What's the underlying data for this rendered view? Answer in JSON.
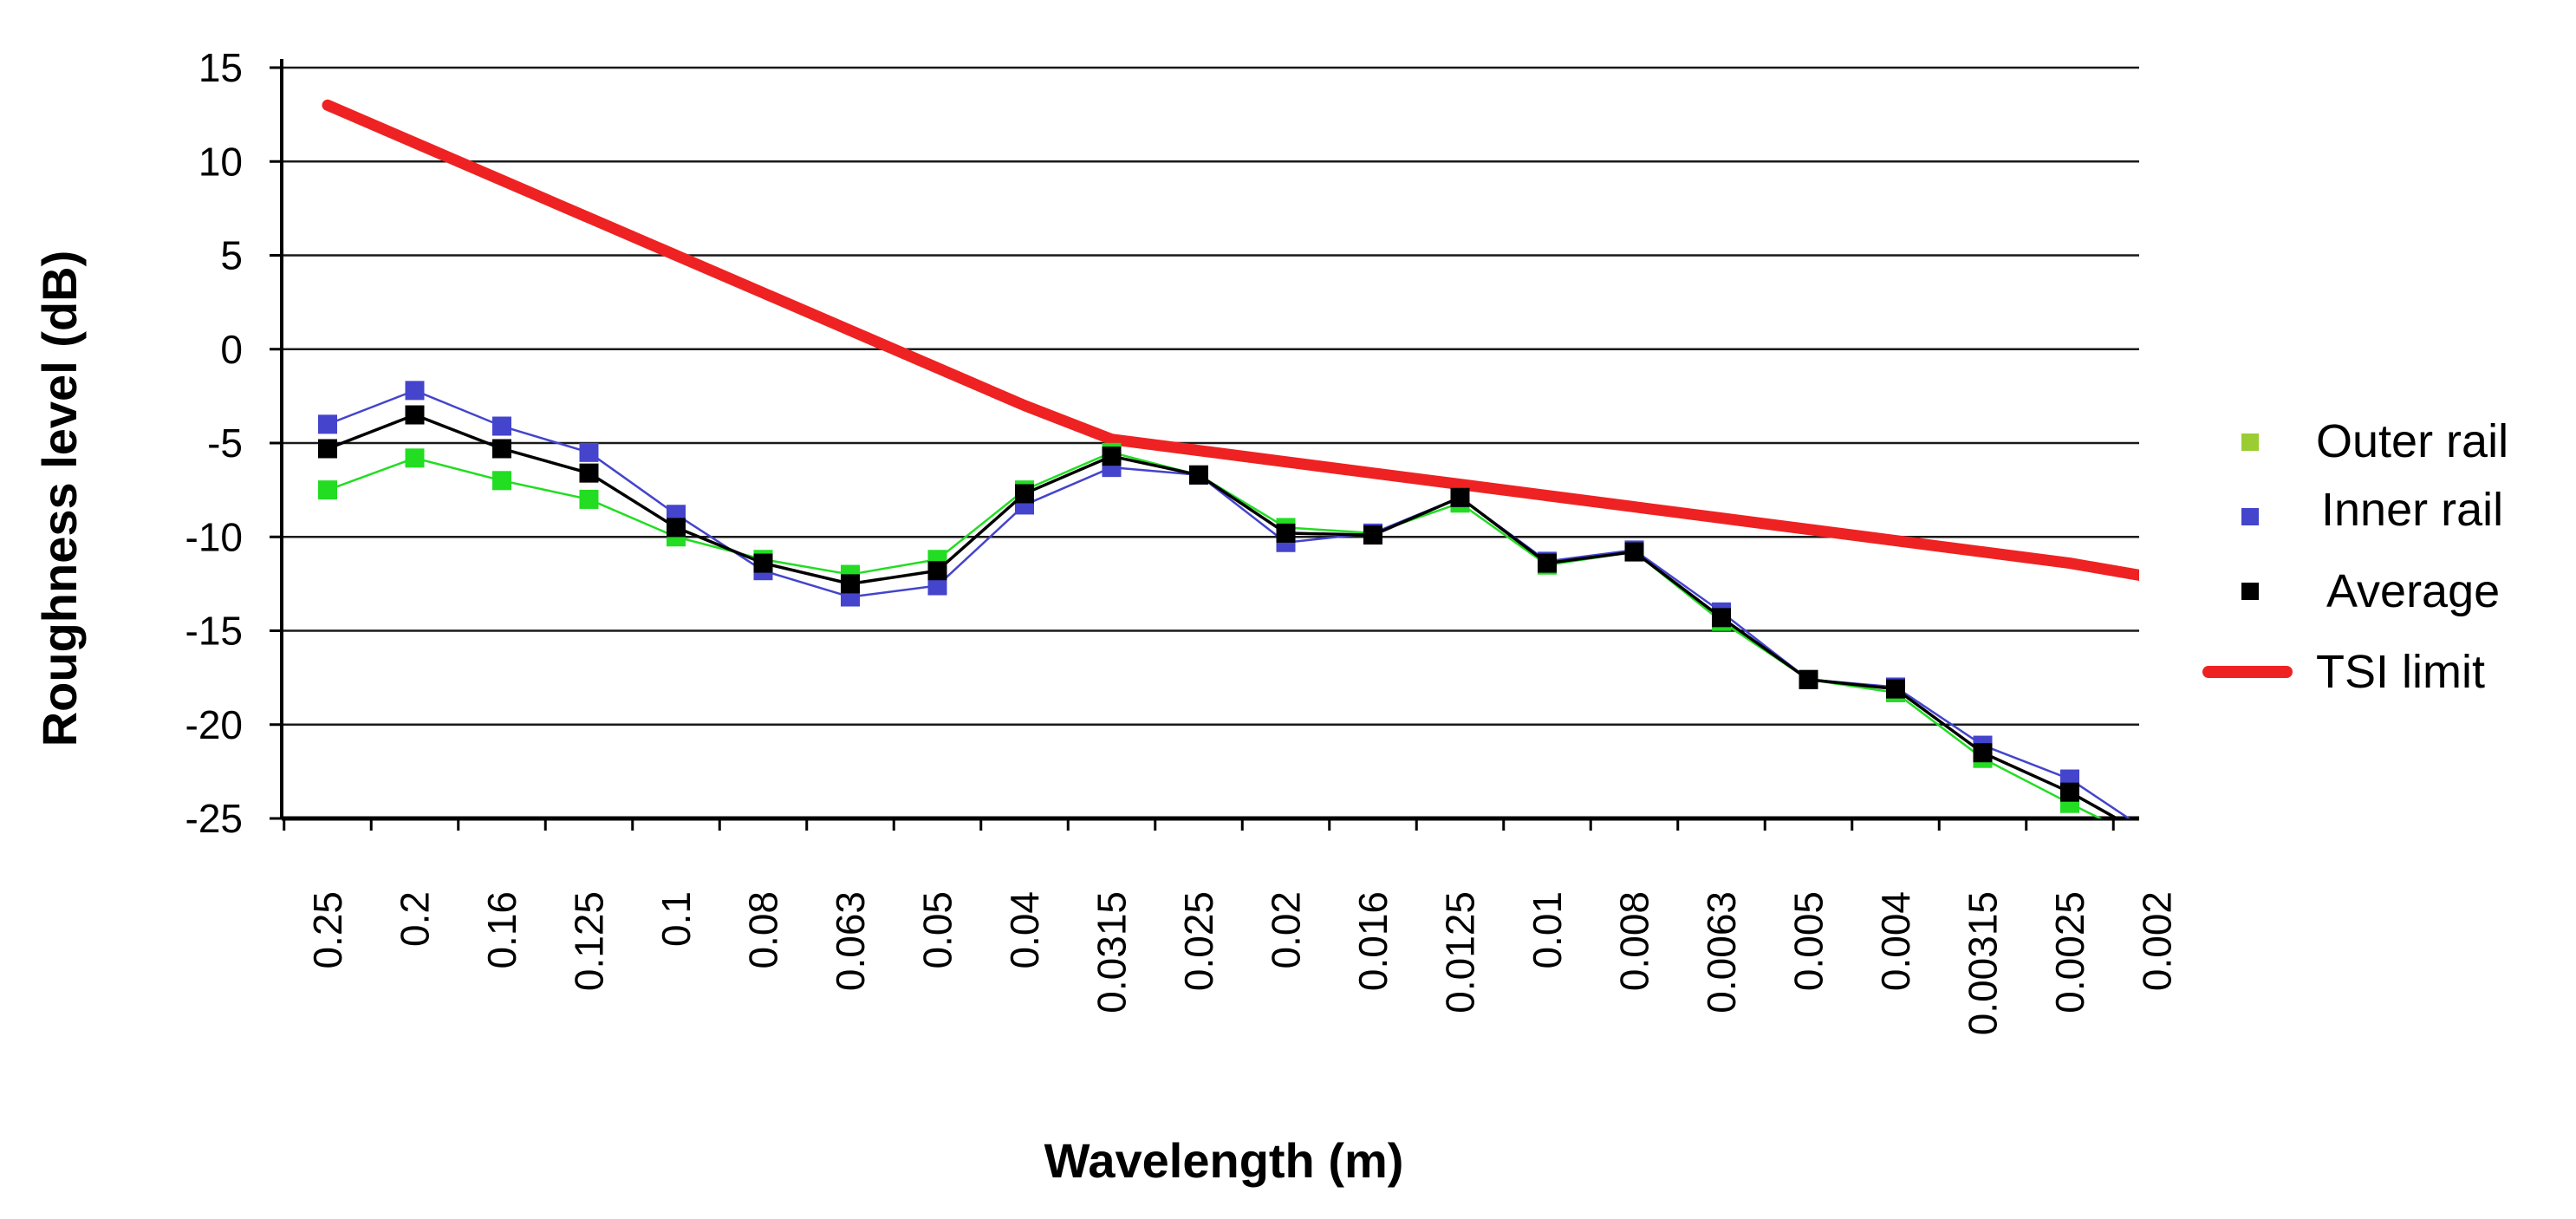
{
  "chart_data": {
    "type": "line",
    "title": "",
    "xlabel": "Wavelength (m)",
    "ylabel": "Roughness level  (dB)",
    "ylim": [
      -25,
      15
    ],
    "yticks": [
      15,
      10,
      5,
      0,
      -5,
      -10,
      -15,
      -20,
      -25
    ],
    "ytick_labels": [
      "15",
      "10",
      "5",
      "0",
      "-5",
      "-10",
      "-15",
      "-20",
      "-25"
    ],
    "categories": [
      "0.25",
      "0.2",
      "0.16",
      "0.125",
      "0.1",
      "0.08",
      "0.063",
      "0.05",
      "0.04",
      "0.0315",
      "0.025",
      "0.02",
      "0.016",
      "0.0125",
      "0.01",
      "0.008",
      "0.0063",
      "0.005",
      "0.004",
      "0.00315",
      "0.0025",
      "0.002"
    ],
    "grid": "horizontal",
    "legend_position": "right",
    "series": [
      {
        "name": "Outer rail",
        "color": "#22dd22",
        "legend_marker_color": "#9acd32",
        "marker": "square",
        "values": [
          -7.5,
          -5.8,
          -7.0,
          -8.0,
          -10.0,
          -11.2,
          -12.0,
          -11.2,
          -7.5,
          -5.5,
          -6.7,
          -9.5,
          -9.8,
          -8.2,
          -11.5,
          -10.8,
          -14.5,
          -17.6,
          -18.3,
          -21.8,
          -24.2,
          -26.5
        ]
      },
      {
        "name": "Inner rail",
        "color": "#4444cc",
        "legend_marker_color": "#4444cc",
        "marker": "square",
        "values": [
          -4.0,
          -2.2,
          -4.1,
          -5.5,
          -8.8,
          -11.8,
          -13.2,
          -12.6,
          -8.3,
          -6.3,
          -6.7,
          -10.3,
          -9.8,
          -7.9,
          -11.3,
          -10.7,
          -14.0,
          -17.6,
          -18.0,
          -21.1,
          -22.9,
          -26.0
        ]
      },
      {
        "name": "Average",
        "color": "#000000",
        "legend_marker_color": "#000000",
        "marker": "square",
        "values": [
          -5.3,
          -3.5,
          -5.3,
          -6.6,
          -9.5,
          -11.4,
          -12.5,
          -11.8,
          -7.7,
          -5.7,
          -6.7,
          -9.8,
          -9.9,
          -7.9,
          -11.4,
          -10.8,
          -14.3,
          -17.6,
          -18.1,
          -21.5,
          -23.6,
          -26.2
        ]
      },
      {
        "name": "TSI limit",
        "color": "#ee2222",
        "legend_marker_color": "#ee2222",
        "marker": "none",
        "values": [
          13.0,
          11.0,
          9.0,
          7.0,
          5.0,
          3.0,
          1.0,
          -1.0,
          -3.0,
          -4.8,
          -5.4,
          -6.0,
          -6.6,
          -7.2,
          -7.8,
          -8.4,
          -9.0,
          -9.6,
          -10.2,
          -10.8,
          -11.4,
          -12.2
        ]
      }
    ]
  }
}
